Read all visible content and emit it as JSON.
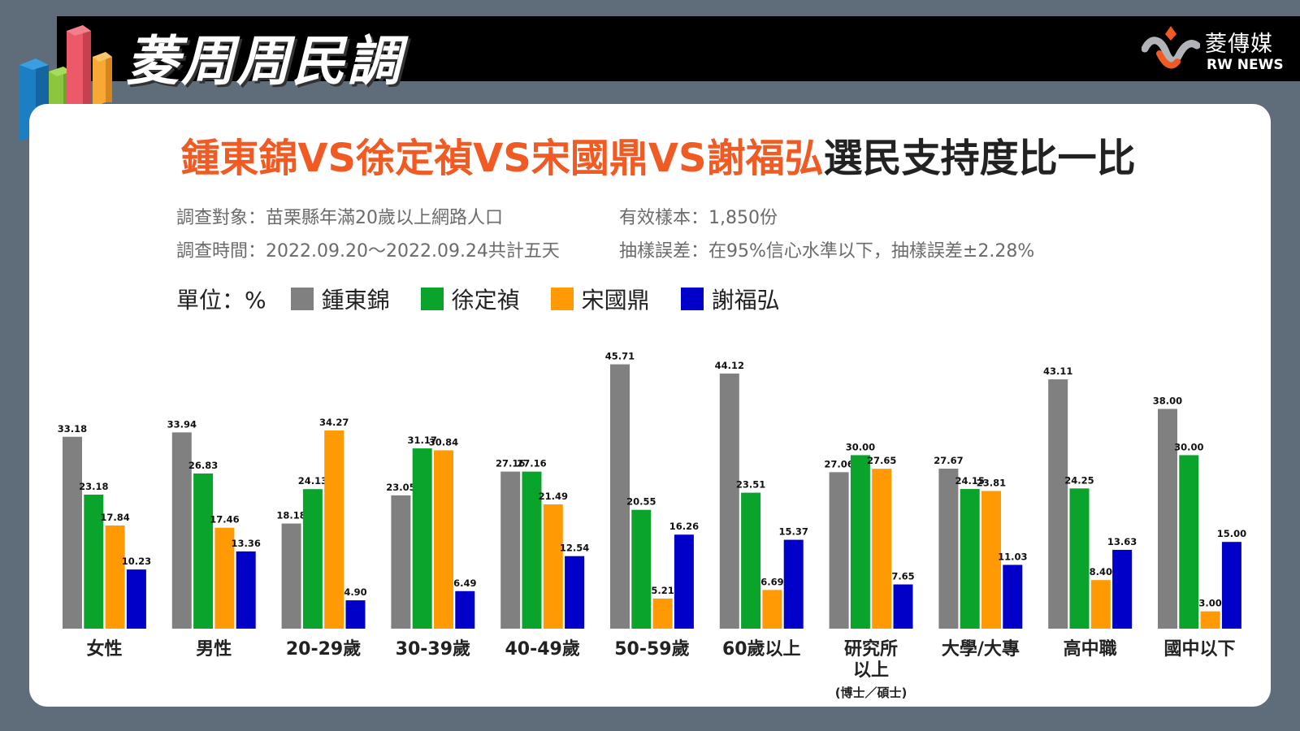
{
  "header": {
    "title": "菱周周民調",
    "brand_cn": "菱傳媒",
    "brand_en": "RW NEWS"
  },
  "headline": {
    "highlight": "鍾東錦VS徐定禎VS宋國鼎VS謝福弘",
    "rest": "選民支持度比一比"
  },
  "survey": {
    "target": "調查對象：苗栗縣年滿20歲以上網路人口",
    "period": "調查時間：2022.09.20～2022.09.24共計五天",
    "samples": "有效樣本：1,850份",
    "error": "抽樣誤差：在95%信心水準以下，抽樣誤差±2.28%"
  },
  "legend": {
    "unit": "單位：%"
  },
  "colors": {
    "brand_orange": "#f15a22",
    "series": [
      "#808080",
      "#0aa42d",
      "#ff9a05",
      "#0000c8"
    ]
  },
  "chart_data": {
    "type": "bar",
    "ylim": [
      0,
      50
    ],
    "categories": [
      "女性",
      "男性",
      "20-29歲",
      "30-39歲",
      "40-49歲",
      "50-59歲",
      "60歲以上",
      "研究所以上",
      "大學/大專",
      "高中職",
      "國中以下"
    ],
    "category_lines": [
      [
        "女性"
      ],
      [
        "男性"
      ],
      [
        "20-29歲"
      ],
      [
        "30-39歲"
      ],
      [
        "40-49歲"
      ],
      [
        "50-59歲"
      ],
      [
        "60歲以上"
      ],
      [
        "研究所",
        "以上",
        "(博士／碩士)"
      ],
      [
        "大學/大專"
      ],
      [
        "高中職"
      ],
      [
        "國中以下"
      ]
    ],
    "series": [
      {
        "name": "鍾東錦",
        "values": [
          33.18,
          33.94,
          18.18,
          23.05,
          27.16,
          45.71,
          44.12,
          27.06,
          27.67,
          43.11,
          38.0
        ]
      },
      {
        "name": "徐定禎",
        "values": [
          23.18,
          26.83,
          24.13,
          31.17,
          27.16,
          20.55,
          23.51,
          30.0,
          24.15,
          24.25,
          30.0
        ]
      },
      {
        "name": "宋國鼎",
        "values": [
          17.84,
          17.46,
          34.27,
          30.84,
          21.49,
          5.21,
          6.69,
          27.65,
          23.81,
          8.4,
          3.0
        ]
      },
      {
        "name": "謝福弘",
        "values": [
          10.23,
          13.36,
          4.9,
          6.49,
          12.54,
          16.26,
          15.37,
          7.65,
          11.03,
          13.63,
          15.0
        ]
      }
    ]
  }
}
